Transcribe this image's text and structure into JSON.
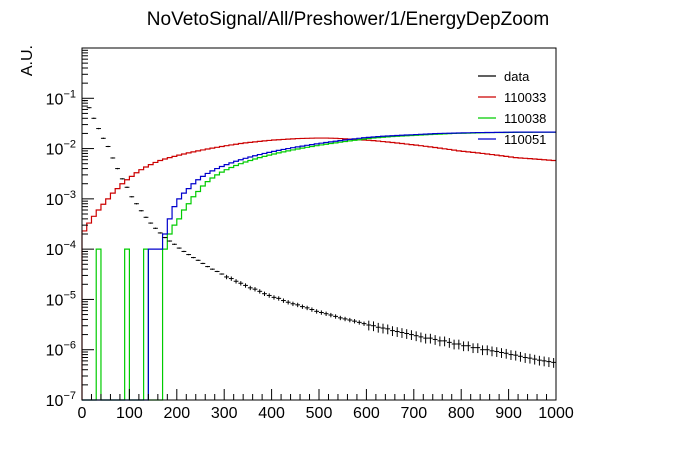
{
  "chart_data": {
    "type": "step",
    "title": "NoVetoSignal/All/Preshower/1/EnergyDepZoom",
    "xlabel": "",
    "ylabel": "A.U.",
    "xlim": [
      0,
      1000
    ],
    "ylim": [
      1e-07,
      1
    ],
    "yscale": "log",
    "bin_width": 10,
    "grid": false,
    "legend_position": "top-right",
    "x_ticks": [
      0,
      100,
      200,
      300,
      400,
      500,
      600,
      700,
      800,
      900,
      1000
    ],
    "x_tick_labels": [
      "0",
      "100",
      "200",
      "300",
      "400",
      "500",
      "600",
      "700",
      "800",
      "900",
      "1000"
    ],
    "y_ticks": [
      1e-07,
      1e-06,
      1e-05,
      0.0001,
      0.001,
      0.01,
      0.1
    ],
    "y_tick_labels": [
      {
        "base": "10",
        "exp": "−7"
      },
      {
        "base": "10",
        "exp": "−6"
      },
      {
        "base": "10",
        "exp": "−5"
      },
      {
        "base": "10",
        "exp": "−4"
      },
      {
        "base": "10",
        "exp": "−3"
      },
      {
        "base": "10",
        "exp": "−2"
      },
      {
        "base": "10",
        "exp": "−1"
      }
    ],
    "series": [
      {
        "name": "data",
        "color": "#000000",
        "style": "points-errorbars",
        "x": [
          5,
          15,
          25,
          35,
          45,
          55,
          65,
          75,
          85,
          95,
          105,
          115,
          125,
          135,
          145,
          155,
          165,
          175,
          185,
          195,
          205,
          215,
          225,
          235,
          245,
          255,
          265,
          275,
          285,
          295,
          305,
          315,
          325,
          335,
          345,
          355,
          365,
          375,
          385,
          395,
          405,
          415,
          425,
          435,
          445,
          455,
          465,
          475,
          485,
          495,
          505,
          515,
          525,
          535,
          545,
          555,
          565,
          575,
          585,
          595,
          605,
          615,
          625,
          635,
          645,
          655,
          665,
          675,
          685,
          695,
          705,
          715,
          725,
          735,
          745,
          755,
          765,
          775,
          785,
          795,
          805,
          815,
          825,
          835,
          845,
          855,
          865,
          875,
          885,
          895,
          905,
          915,
          925,
          935,
          945,
          955,
          965,
          975,
          985,
          995
        ],
        "y": [
          0.09,
          0.065,
          0.04,
          0.025,
          0.016,
          0.011,
          0.0065,
          0.004,
          0.0025,
          0.0017,
          0.0011,
          0.0008,
          0.00058,
          0.00043,
          0.00033,
          0.00026,
          0.00021,
          0.00017,
          0.000145,
          0.000125,
          0.000105,
          9e-05,
          7.8e-05,
          6.8e-05,
          6e-05,
          5.2e-05,
          4.5e-05,
          4e-05,
          3.6e-05,
          3.2e-05,
          2.8e-05,
          2.6e-05,
          2.3e-05,
          2.1e-05,
          1.9e-05,
          1.7e-05,
          1.6e-05,
          1.45e-05,
          1.3e-05,
          1.2e-05,
          1.1e-05,
          1.05e-05,
          9.5e-06,
          8.8e-06,
          8.2e-06,
          7.8e-06,
          7.2e-06,
          6.8e-06,
          6.3e-06,
          5.8e-06,
          5.5e-06,
          5.2e-06,
          4.9e-06,
          4.6e-06,
          4.3e-06,
          4.1e-06,
          3.9e-06,
          3.7e-06,
          3.5e-06,
          3.3e-06,
          3.1e-06,
          3e-06,
          2.8e-06,
          2.7e-06,
          2.6e-06,
          2.4e-06,
          2.3e-06,
          2.2e-06,
          2.1e-06,
          2e-06,
          1.9e-06,
          1.8e-06,
          1.7e-06,
          1.7e-06,
          1.6e-06,
          1.5e-06,
          1.5e-06,
          1.4e-06,
          1.3e-06,
          1.3e-06,
          1.2e-06,
          1.2e-06,
          1.1e-06,
          1.1e-06,
          1e-06,
          1e-06,
          9.5e-07,
          9.2e-07,
          8.8e-07,
          8.5e-07,
          8e-07,
          7.8e-07,
          7.4e-07,
          7e-07,
          6.8e-07,
          6.5e-07,
          6.2e-07,
          6e-07,
          5.8e-07,
          5.6e-07
        ]
      },
      {
        "name": "110033",
        "color": "#cc0000",
        "style": "step",
        "y": [
          0.00023,
          0.00033,
          0.00045,
          0.0006,
          0.00078,
          0.001,
          0.0013,
          0.0016,
          0.002,
          0.0024,
          0.0028,
          0.0033,
          0.0038,
          0.0043,
          0.0048,
          0.0053,
          0.0058,
          0.0062,
          0.0066,
          0.007,
          0.0074,
          0.0078,
          0.0082,
          0.0086,
          0.009,
          0.0094,
          0.0098,
          0.0102,
          0.0106,
          0.011,
          0.0114,
          0.0118,
          0.0122,
          0.0126,
          0.013,
          0.0133,
          0.0136,
          0.0139,
          0.0142,
          0.0145,
          0.0148,
          0.015,
          0.0152,
          0.0154,
          0.0156,
          0.0158,
          0.0159,
          0.016,
          0.0161,
          0.0162,
          0.0162,
          0.0162,
          0.0161,
          0.016,
          0.0158,
          0.0156,
          0.0154,
          0.0152,
          0.015,
          0.0148,
          0.0146,
          0.0144,
          0.0141,
          0.0138,
          0.0135,
          0.0132,
          0.0129,
          0.0126,
          0.0123,
          0.012,
          0.0117,
          0.0114,
          0.0111,
          0.0108,
          0.0105,
          0.0102,
          0.0099,
          0.0096,
          0.0093,
          0.009,
          0.0088,
          0.0086,
          0.0084,
          0.0082,
          0.008,
          0.0078,
          0.0076,
          0.0074,
          0.0072,
          0.007,
          0.0068,
          0.0066,
          0.0065,
          0.0064,
          0.0063,
          0.0062,
          0.0061,
          0.006,
          0.0059,
          0.0058
        ]
      },
      {
        "name": "110038",
        "color": "#00cc00",
        "style": "step",
        "y": [
          0,
          0,
          0,
          0.0001,
          0,
          0,
          0,
          0,
          0,
          0.0001,
          0,
          0,
          0,
          0.0001,
          0,
          0,
          0,
          0.0001,
          0.0002,
          0.0003,
          0.0004,
          0.0006,
          0.0008,
          0.0011,
          0.0014,
          0.0018,
          0.0022,
          0.0026,
          0.003,
          0.0034,
          0.0038,
          0.0042,
          0.0046,
          0.005,
          0.0054,
          0.0058,
          0.0062,
          0.0066,
          0.007,
          0.0074,
          0.0078,
          0.0082,
          0.0086,
          0.009,
          0.0094,
          0.0098,
          0.0102,
          0.0106,
          0.011,
          0.0114,
          0.0118,
          0.0122,
          0.0126,
          0.013,
          0.0134,
          0.0138,
          0.0142,
          0.0146,
          0.015,
          0.0154,
          0.0158,
          0.0162,
          0.0165,
          0.0168,
          0.0171,
          0.0174,
          0.0176,
          0.0178,
          0.018,
          0.0182,
          0.0184,
          0.0186,
          0.0188,
          0.019,
          0.0192,
          0.0194,
          0.0196,
          0.0198,
          0.02,
          0.0201,
          0.0202,
          0.0203,
          0.0204,
          0.0205,
          0.0206,
          0.0207,
          0.0208,
          0.0208,
          0.0209,
          0.0209,
          0.021,
          0.021,
          0.0211,
          0.0211,
          0.0211,
          0.0212,
          0.0212,
          0.0212,
          0.0212,
          0.0212
        ]
      },
      {
        "name": "110051",
        "color": "#0000cc",
        "style": "step",
        "y": [
          0,
          0,
          0,
          0,
          0,
          0,
          0,
          0,
          0,
          0,
          0,
          0,
          0,
          0,
          0.0001,
          0.0001,
          0.0001,
          0.0002,
          0.0004,
          0.0007,
          0.001,
          0.0013,
          0.0016,
          0.002,
          0.0024,
          0.0028,
          0.0032,
          0.0036,
          0.004,
          0.0044,
          0.0048,
          0.0052,
          0.0056,
          0.006,
          0.0064,
          0.0068,
          0.0072,
          0.0076,
          0.008,
          0.0084,
          0.0088,
          0.0092,
          0.0096,
          0.01,
          0.0104,
          0.0108,
          0.0112,
          0.0116,
          0.012,
          0.0124,
          0.0128,
          0.0132,
          0.0136,
          0.014,
          0.0144,
          0.0148,
          0.0152,
          0.0156,
          0.016,
          0.0164,
          0.0167,
          0.017,
          0.0173,
          0.0176,
          0.0178,
          0.018,
          0.0182,
          0.0184,
          0.0186,
          0.0188,
          0.019,
          0.0192,
          0.0194,
          0.0196,
          0.0198,
          0.02,
          0.0201,
          0.0202,
          0.0203,
          0.0204,
          0.0205,
          0.0206,
          0.0207,
          0.0208,
          0.0208,
          0.0209,
          0.0209,
          0.021,
          0.021,
          0.0211,
          0.0211,
          0.0212,
          0.0212,
          0.0212,
          0.0212,
          0.0212,
          0.0212,
          0.0212,
          0.0212,
          0.0212
        ]
      }
    ]
  }
}
